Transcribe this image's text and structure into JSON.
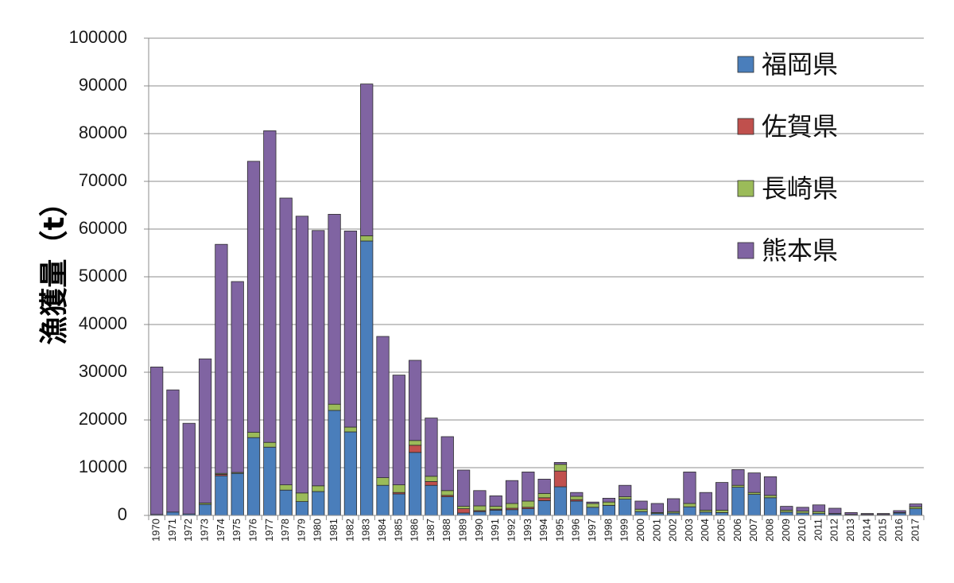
{
  "chart_data": {
    "type": "bar",
    "stacked": true,
    "title": "",
    "xlabel": "",
    "ylabel": "漁獲量（t）",
    "ylim": [
      0,
      100000
    ],
    "yticks": [
      0,
      10000,
      20000,
      30000,
      40000,
      50000,
      60000,
      70000,
      80000,
      90000,
      100000
    ],
    "grid": true,
    "legend_position": "top-right",
    "categories": [
      "1970",
      "1971",
      "1972",
      "1973",
      "1974",
      "1975",
      "1976",
      "1977",
      "1978",
      "1979",
      "1980",
      "1981",
      "1982",
      "1983",
      "1984",
      "1985",
      "1986",
      "1987",
      "1988",
      "1989",
      "1990",
      "1991",
      "1992",
      "1993",
      "1994",
      "1995",
      "1996",
      "1997",
      "1998",
      "1999",
      "2000",
      "2001",
      "2002",
      "2003",
      "2004",
      "2005",
      "2006",
      "2007",
      "2008",
      "2009",
      "2010",
      "2011",
      "2012",
      "2013",
      "2014",
      "2015",
      "2016",
      "2017"
    ],
    "series": [
      {
        "name": "福岡県",
        "color": "#4a7ebb",
        "values": [
          200,
          700,
          300,
          2300,
          8300,
          8800,
          16300,
          14300,
          5300,
          2900,
          5000,
          22000,
          17500,
          57500,
          6300,
          4500,
          13200,
          6300,
          3900,
          500,
          800,
          1100,
          1200,
          1400,
          3100,
          6000,
          3000,
          1700,
          2100,
          3400,
          800,
          400,
          500,
          1800,
          700,
          600,
          5900,
          4400,
          3700,
          700,
          500,
          400,
          300,
          100,
          100,
          100,
          500,
          1400
        ]
      },
      {
        "name": "佐賀県",
        "color": "#c0504d",
        "values": [
          0,
          0,
          0,
          0,
          300,
          0,
          0,
          0,
          0,
          0,
          0,
          0,
          0,
          0,
          0,
          300,
          1500,
          800,
          300,
          900,
          200,
          200,
          300,
          300,
          600,
          3300,
          300,
          0,
          0,
          0,
          0,
          0,
          0,
          0,
          0,
          0,
          0,
          0,
          0,
          0,
          0,
          0,
          0,
          0,
          0,
          0,
          0,
          0
        ]
      },
      {
        "name": "長崎県",
        "color": "#9bbb59",
        "values": [
          0,
          0,
          0,
          300,
          200,
          200,
          1100,
          1000,
          1100,
          1800,
          1200,
          1300,
          1000,
          1100,
          1600,
          1600,
          1000,
          1100,
          1000,
          500,
          1000,
          600,
          1000,
          1300,
          900,
          1400,
          700,
          800,
          700,
          500,
          500,
          200,
          300,
          700,
          400,
          500,
          400,
          400,
          500,
          400,
          400,
          400,
          100,
          100,
          100,
          100,
          100,
          400
        ]
      },
      {
        "name": "熊本県",
        "color": "#8064a2",
        "values": [
          30900,
          25600,
          19000,
          30200,
          48000,
          40000,
          56800,
          65300,
          60100,
          58000,
          53500,
          39800,
          41100,
          31800,
          29600,
          23000,
          16800,
          12200,
          11300,
          7600,
          3200,
          2200,
          4800,
          6100,
          3000,
          400,
          800,
          300,
          800,
          2400,
          1700,
          1900,
          2700,
          6600,
          3700,
          5800,
          3300,
          4100,
          3900,
          800,
          800,
          1400,
          1100,
          400,
          200,
          200,
          400,
          600
        ]
      }
    ]
  }
}
